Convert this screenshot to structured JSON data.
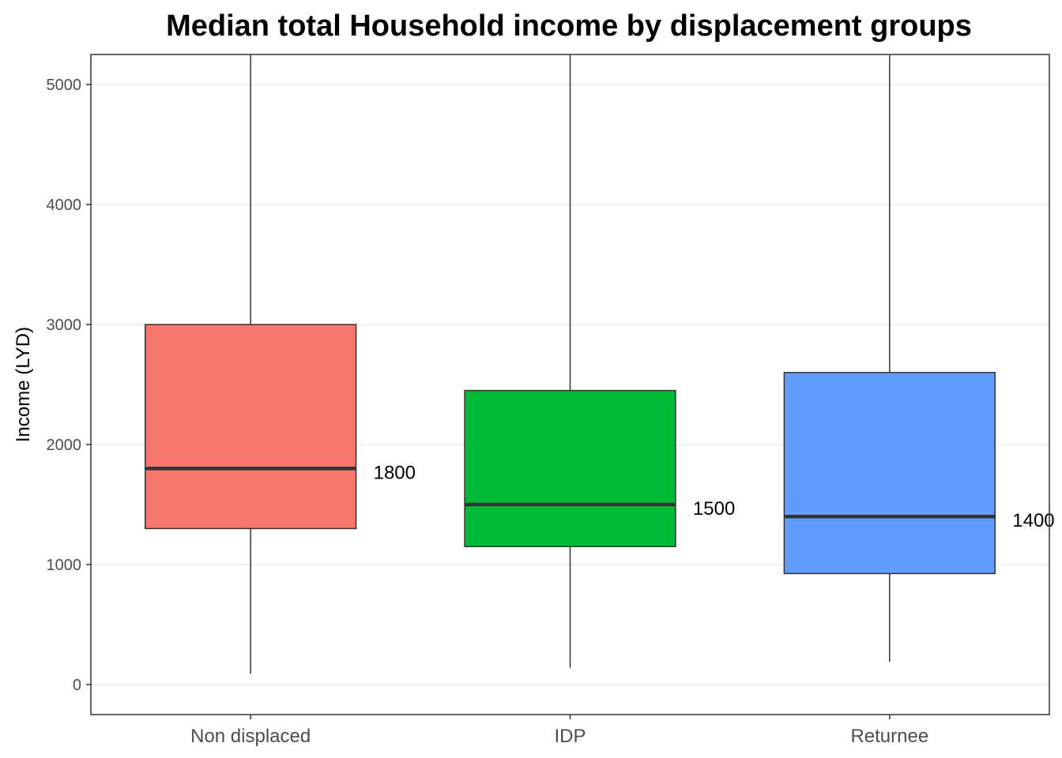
{
  "chart_data": {
    "type": "boxplot",
    "title": "Median total Household income by displacement groups",
    "xlabel": "",
    "ylabel": "Income (LYD)",
    "ylim": [
      -250,
      5250
    ],
    "yticks": [
      0,
      1000,
      2000,
      3000,
      4000,
      5000
    ],
    "grid": true,
    "legend": "none",
    "categories": [
      "Non displaced",
      "IDP",
      "Returnee"
    ],
    "boxes": [
      {
        "category": "Non displaced",
        "min": 90,
        "q1": 1300,
        "median": 1800,
        "q3": 3000,
        "max": 5250,
        "label": "1800",
        "color": "#F8766D"
      },
      {
        "category": "IDP",
        "min": 140,
        "q1": 1150,
        "median": 1500,
        "q3": 2450,
        "max": 5250,
        "label": "1500",
        "color": "#00BA38"
      },
      {
        "category": "Returnee",
        "min": 190,
        "q1": 925,
        "median": 1400,
        "q3": 2600,
        "max": 5250,
        "label": "1400",
        "color": "#619CFF"
      }
    ]
  }
}
